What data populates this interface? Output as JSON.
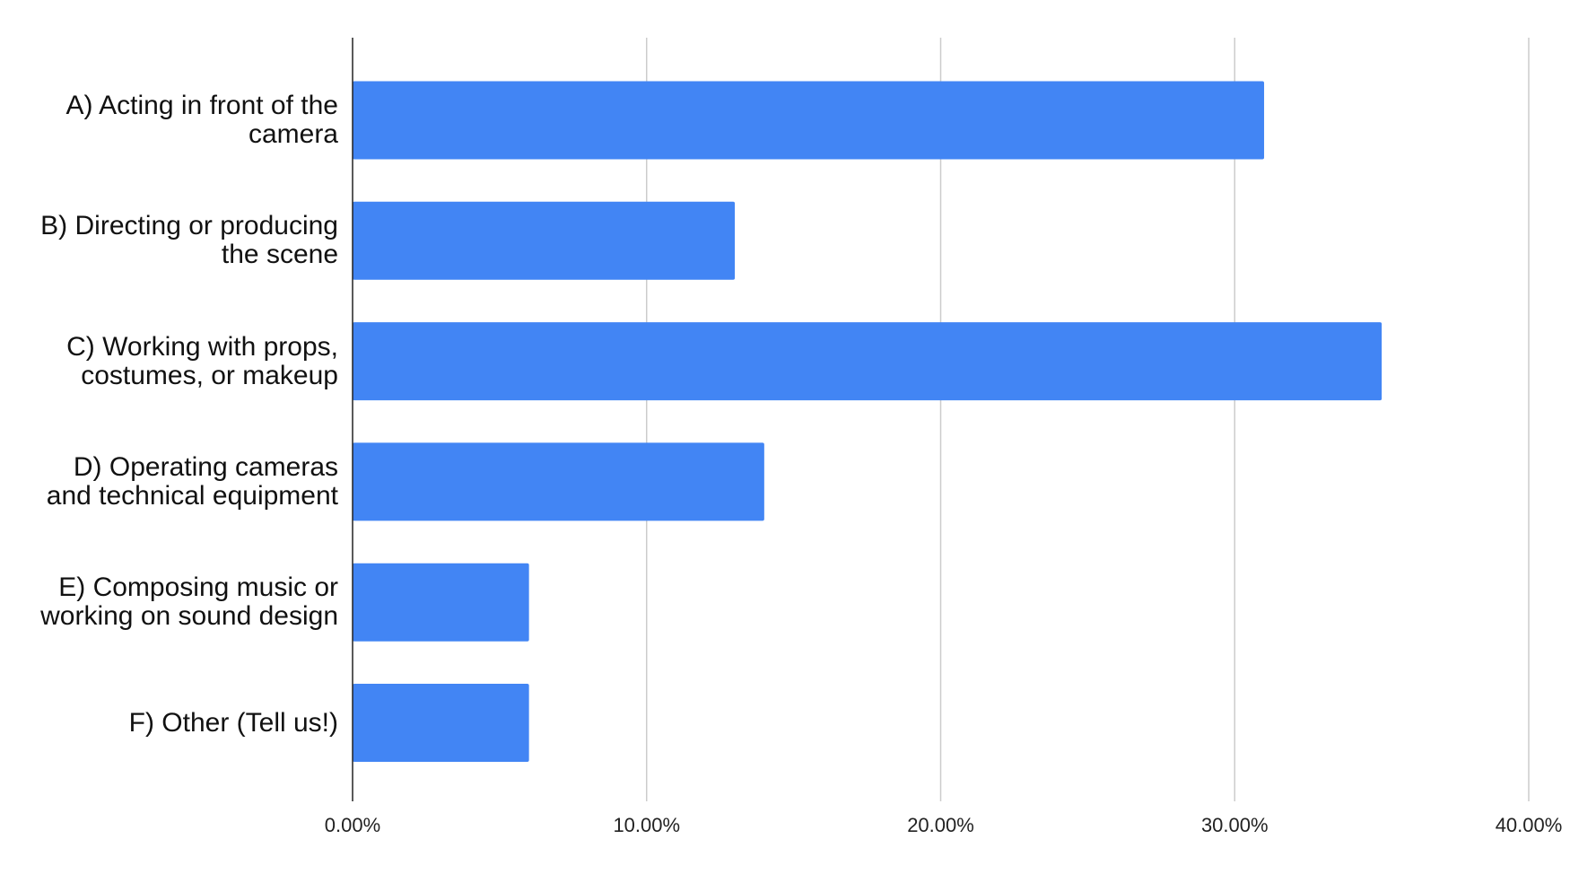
{
  "chart_data": {
    "type": "bar",
    "orientation": "horizontal",
    "categories": [
      "A) Acting in front of the camera",
      "B) Directing or producing the scene",
      "C) Working with props, costumes, or makeup",
      "D) Operating cameras and technical equipment",
      "E) Composing music or working on sound design",
      "F) Other (Tell us!)"
    ],
    "values": [
      31,
      13,
      35,
      14,
      6,
      6
    ],
    "color": "#4285f4",
    "xlim": [
      0,
      40
    ],
    "xticks": [
      {
        "value": 0,
        "label": "0.00%"
      },
      {
        "value": 10,
        "label": "10.00%"
      },
      {
        "value": 20,
        "label": "20.00%"
      },
      {
        "value": 30,
        "label": "30.00%"
      },
      {
        "value": 40,
        "label": "40.00%"
      }
    ],
    "grid": true
  }
}
